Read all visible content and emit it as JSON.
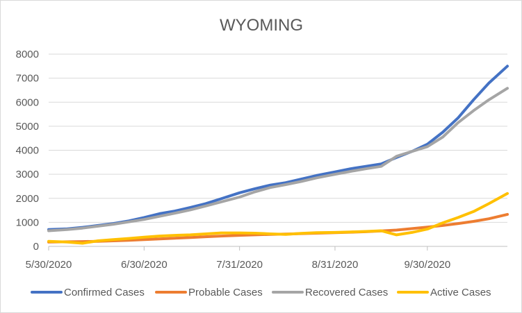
{
  "chart_data": {
    "type": "line",
    "title": "WYOMING",
    "xlabel": "",
    "ylabel": "",
    "ylim": [
      0,
      8000
    ],
    "y_ticks": [
      0,
      1000,
      2000,
      3000,
      4000,
      5000,
      6000,
      7000,
      8000
    ],
    "x_range": [
      "2020-05-30",
      "2020-10-26"
    ],
    "x_ticks": [
      "2020-05-30",
      "2020-06-30",
      "2020-07-31",
      "2020-08-31",
      "2020-09-30"
    ],
    "x_tick_labels": [
      "5/30/2020",
      "6/30/2020",
      "7/31/2020",
      "8/31/2020",
      "9/30/2020"
    ],
    "grid": true,
    "legend_position": "bottom",
    "x": [
      "2020-05-30",
      "2020-06-05",
      "2020-06-10",
      "2020-06-15",
      "2020-06-20",
      "2020-06-25",
      "2020-06-30",
      "2020-07-05",
      "2020-07-10",
      "2020-07-15",
      "2020-07-20",
      "2020-07-25",
      "2020-07-31",
      "2020-08-05",
      "2020-08-10",
      "2020-08-15",
      "2020-08-20",
      "2020-08-25",
      "2020-08-31",
      "2020-09-05",
      "2020-09-10",
      "2020-09-15",
      "2020-09-20",
      "2020-09-25",
      "2020-09-30",
      "2020-10-05",
      "2020-10-10",
      "2020-10-15",
      "2020-10-20",
      "2020-10-26"
    ],
    "series": [
      {
        "name": "Confirmed Cases",
        "color": "#4472c4",
        "values": [
          700,
          730,
          790,
          870,
          950,
          1060,
          1200,
          1360,
          1470,
          1620,
          1780,
          1980,
          2230,
          2400,
          2550,
          2650,
          2800,
          2950,
          3100,
          3230,
          3330,
          3430,
          3700,
          3950,
          4250,
          4750,
          5350,
          6100,
          6800,
          7500
        ]
      },
      {
        "name": "Probable Cases",
        "color": "#ed7d31",
        "values": [
          180,
          190,
          200,
          210,
          230,
          250,
          280,
          310,
          340,
          370,
          400,
          430,
          460,
          480,
          500,
          510,
          530,
          550,
          570,
          590,
          610,
          640,
          680,
          740,
          800,
          870,
          950,
          1040,
          1150,
          1330
        ]
      },
      {
        "name": "Recovered Cases",
        "color": "#a5a5a5",
        "values": [
          650,
          700,
          760,
          840,
          920,
          1020,
          1120,
          1250,
          1380,
          1520,
          1680,
          1850,
          2050,
          2270,
          2450,
          2570,
          2700,
          2850,
          3000,
          3120,
          3230,
          3330,
          3750,
          3950,
          4150,
          4550,
          5150,
          5650,
          6100,
          6580
        ]
      },
      {
        "name": "Active Cases",
        "color": "#ffc000",
        "values": [
          210,
          180,
          130,
          230,
          280,
          330,
          380,
          430,
          460,
          480,
          520,
          560,
          560,
          550,
          520,
          500,
          540,
          570,
          580,
          600,
          620,
          650,
          480,
          580,
          720,
          980,
          1200,
          1450,
          1780,
          2200
        ]
      }
    ]
  }
}
